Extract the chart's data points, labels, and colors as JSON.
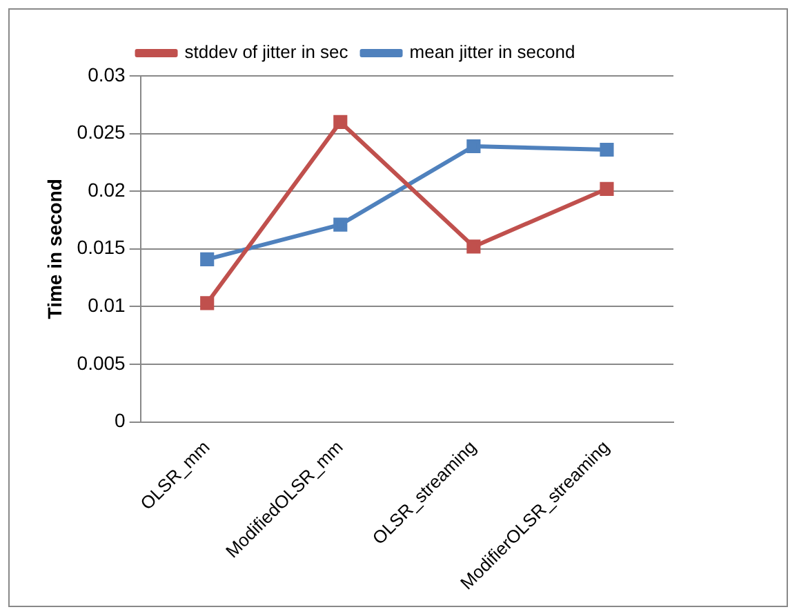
{
  "chart_data": {
    "type": "line",
    "ylabel": "Time in second",
    "categories": [
      "OLSR_mm",
      "ModifiedOLSR_mm",
      "OLSR_streaming",
      "ModifierOLSR_streaming"
    ],
    "series": [
      {
        "name": "stddev of jitter in sec",
        "color": "#c0504d",
        "values": [
          0.0103,
          0.026,
          0.0152,
          0.0202
        ]
      },
      {
        "name": "mean jitter in second",
        "color": "#4f81bd",
        "values": [
          0.0141,
          0.0171,
          0.0239,
          0.0236
        ]
      }
    ],
    "ylim": [
      0,
      0.03
    ],
    "yticks": [
      0,
      0.005,
      0.01,
      0.015,
      0.02,
      0.025,
      0.03
    ],
    "grid": "y",
    "legend": "top",
    "marker": "square",
    "line_style": "solid"
  }
}
